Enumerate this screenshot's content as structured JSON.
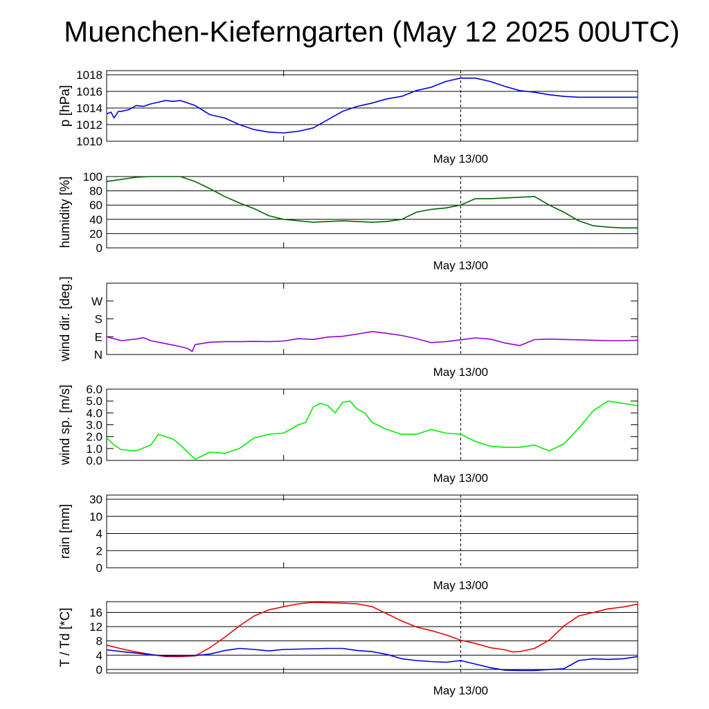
{
  "title": "Muenchen-Kieferngarten (May 12 2025 00UTC)",
  "x_label": "May 13/00",
  "colors": {
    "pressure": "#0000dd",
    "humidity": "#006400",
    "wind_dir": "#9400d3",
    "wind_speed": "#00ee00",
    "temperature": "#ee0000",
    "dewpoint": "#0000dd"
  },
  "chart_data": [
    {
      "type": "line",
      "ylabel": "p [hPa]",
      "ylim": [
        1010,
        1018.5
      ],
      "yticks": [
        1010,
        1012,
        1014,
        1016,
        1018
      ],
      "ytick_labels": [
        "1010",
        "1012",
        "1014",
        "1016",
        "1018"
      ],
      "grid": true,
      "x_range_hours": [
        0,
        36
      ],
      "series": [
        {
          "color_key": "pressure",
          "x": [
            0,
            0.3,
            0.5,
            0.8,
            1,
            1.5,
            2,
            2.5,
            3,
            3.5,
            4,
            4.5,
            5,
            5.5,
            6,
            7,
            8,
            9,
            10,
            11,
            12,
            13,
            14,
            15,
            16,
            17,
            18,
            19,
            20,
            21,
            22,
            23,
            24,
            25,
            26,
            27,
            28,
            29,
            30,
            31,
            32,
            33,
            34,
            35,
            36
          ],
          "y": [
            1013.3,
            1013.5,
            1012.8,
            1013.6,
            1013.6,
            1013.8,
            1014.3,
            1014.2,
            1014.5,
            1014.7,
            1014.9,
            1014.8,
            1014.9,
            1014.6,
            1014.3,
            1013.2,
            1012.8,
            1012,
            1011.4,
            1011.1,
            1011,
            1011.2,
            1011.6,
            1012.6,
            1013.6,
            1014.2,
            1014.6,
            1015.1,
            1015.4,
            1016.1,
            1016.5,
            1017.2,
            1017.6,
            1017.6,
            1017.2,
            1016.6,
            1016.1,
            1015.9,
            1015.6,
            1015.4,
            1015.3,
            1015.3,
            1015.3,
            1015.3,
            1015.3
          ]
        }
      ]
    },
    {
      "type": "line",
      "ylabel": "humidity [%]",
      "ylim": [
        0,
        100
      ],
      "yticks": [
        0,
        20,
        40,
        60,
        80,
        100
      ],
      "ytick_labels": [
        "0",
        "20",
        "40",
        "60",
        "80",
        "100"
      ],
      "grid": true,
      "x_range_hours": [
        0,
        36
      ],
      "series": [
        {
          "color_key": "humidity",
          "x": [
            0,
            1,
            2,
            3,
            4,
            5,
            6,
            7,
            8,
            9,
            10,
            11,
            12,
            13,
            14,
            15,
            16,
            17,
            18,
            19,
            20,
            21,
            22,
            23,
            24,
            25,
            26,
            27,
            28,
            29,
            30,
            31,
            32,
            33,
            34,
            35,
            36
          ],
          "y": [
            93,
            96,
            99,
            100,
            100,
            100,
            93,
            83,
            72,
            63,
            55,
            45,
            40,
            38,
            36,
            37,
            38,
            37,
            36,
            37,
            40,
            50,
            54,
            56,
            60,
            69,
            69,
            70,
            71,
            72,
            60,
            50,
            38,
            31,
            29,
            28,
            28
          ]
        }
      ]
    },
    {
      "type": "line",
      "ylabel": "wind dir. [deg.]",
      "ylim": [
        0,
        360
      ],
      "yticks": [
        0,
        90,
        180,
        270
      ],
      "ytick_labels": [
        "N",
        "E",
        "S",
        "W"
      ],
      "grid": false,
      "x_range_hours": [
        0,
        36
      ],
      "series": [
        {
          "color_key": "wind_dir",
          "x": [
            0,
            1,
            2,
            2.5,
            3,
            4,
            5,
            5.5,
            5.8,
            6,
            7,
            8,
            9,
            10,
            11,
            12,
            13,
            14,
            15,
            16,
            17,
            18,
            19,
            20,
            21,
            22,
            23,
            24,
            25,
            26,
            27,
            28,
            29,
            30,
            31,
            32,
            33,
            34,
            35,
            36
          ],
          "y": [
            90,
            70,
            78,
            85,
            70,
            55,
            40,
            30,
            15,
            50,
            62,
            65,
            65,
            66,
            65,
            68,
            80,
            76,
            88,
            92,
            103,
            116,
            107,
            96,
            80,
            60,
            65,
            74,
            84,
            78,
            58,
            45,
            75,
            78,
            76,
            74,
            72,
            70,
            70,
            72
          ]
        }
      ]
    },
    {
      "type": "line",
      "ylabel": "wind sp. [m/s]",
      "ylim": [
        0,
        6
      ],
      "yticks": [
        0,
        1,
        2,
        3,
        4,
        5,
        6
      ],
      "ytick_labels": [
        "0.0",
        "1.0",
        "2.0",
        "3.0",
        "4.0",
        "5.0",
        "6.0"
      ],
      "grid": false,
      "x_range_hours": [
        0,
        36
      ],
      "series": [
        {
          "color_key": "wind_speed",
          "x": [
            0,
            0.5,
            1,
            2,
            3,
            3.5,
            4,
            4.5,
            5,
            5.5,
            6,
            6.5,
            7,
            8,
            9,
            10,
            11,
            12,
            13,
            13.5,
            14,
            14.5,
            15,
            15.5,
            16,
            16.5,
            17,
            17.5,
            18,
            19,
            20,
            21,
            22,
            23,
            24,
            25,
            26,
            27,
            28,
            28.5,
            29,
            30,
            31,
            32,
            33,
            34,
            35,
            36
          ],
          "y": [
            1.9,
            1.3,
            0.9,
            0.8,
            1.3,
            2.2,
            2.0,
            1.8,
            1.3,
            0.7,
            0.1,
            0.4,
            0.7,
            0.6,
            1.0,
            1.9,
            2.2,
            2.3,
            3.0,
            3.2,
            4.5,
            4.8,
            4.6,
            4.0,
            4.9,
            5.0,
            4.3,
            4.0,
            3.2,
            2.6,
            2.2,
            2.2,
            2.6,
            2.3,
            2.2,
            1.6,
            1.2,
            1.1,
            1.1,
            1.2,
            1.3,
            0.8,
            1.4,
            2.7,
            4.2,
            5.0,
            4.8,
            4.6
          ]
        }
      ]
    },
    {
      "type": "line",
      "ylabel": "rain [mm]",
      "ylim": [
        0,
        30
      ],
      "yticks": [
        0,
        2,
        4,
        10,
        30
      ],
      "ytick_labels": [
        "0",
        "2",
        "4",
        "10",
        "30"
      ],
      "grid": true,
      "x_range_hours": [
        0,
        36
      ],
      "series": []
    },
    {
      "type": "line",
      "ylabel": "T / Td [*C]",
      "ylim": [
        -1,
        19
      ],
      "yticks": [
        0,
        4,
        8,
        12,
        16
      ],
      "ytick_labels": [
        "0",
        "4",
        "8",
        "12",
        "16"
      ],
      "grid": true,
      "x_range_hours": [
        0,
        36
      ],
      "series": [
        {
          "color_key": "temperature",
          "x": [
            0,
            1,
            2,
            3,
            4,
            5,
            6,
            7,
            8,
            9,
            10,
            11,
            12,
            13,
            14,
            15,
            16,
            17,
            18,
            19,
            20,
            21,
            22,
            23,
            24,
            25,
            26,
            27,
            27.5,
            28,
            29,
            30,
            31,
            32,
            33,
            34,
            35,
            36
          ],
          "y": [
            6.8,
            5.8,
            4.9,
            4.2,
            3.6,
            3.6,
            3.8,
            6.1,
            9.0,
            12.2,
            15.0,
            16.7,
            17.6,
            18.4,
            18.8,
            18.7,
            18.6,
            18.4,
            17.6,
            15.6,
            13.6,
            11.9,
            10.9,
            9.7,
            8.2,
            7.3,
            6.1,
            5.5,
            4.9,
            5.0,
            5.9,
            8.2,
            12.2,
            15.0,
            16.0,
            17.0,
            17.5,
            18.3
          ]
        },
        {
          "color_key": "dewpoint",
          "x": [
            0,
            1,
            2,
            3,
            4,
            5,
            6,
            7,
            8,
            9,
            10,
            11,
            12,
            13,
            14,
            15,
            16,
            17,
            18,
            19,
            20,
            21,
            22,
            23,
            24,
            25,
            26,
            27,
            28,
            29,
            30,
            31,
            32,
            33,
            34,
            35,
            36
          ],
          "y": [
            5.5,
            5.0,
            4.6,
            4.1,
            3.8,
            3.9,
            3.9,
            4.3,
            5.3,
            5.9,
            5.6,
            5.2,
            5.6,
            5.7,
            5.8,
            5.9,
            5.9,
            5.3,
            5.0,
            4.2,
            3.0,
            2.5,
            2.2,
            2.0,
            2.5,
            1.5,
            0.5,
            -0.2,
            -0.3,
            -0.3,
            0.0,
            0.2,
            2.5,
            3.0,
            2.8,
            3.0,
            3.6
          ]
        }
      ]
    }
  ]
}
